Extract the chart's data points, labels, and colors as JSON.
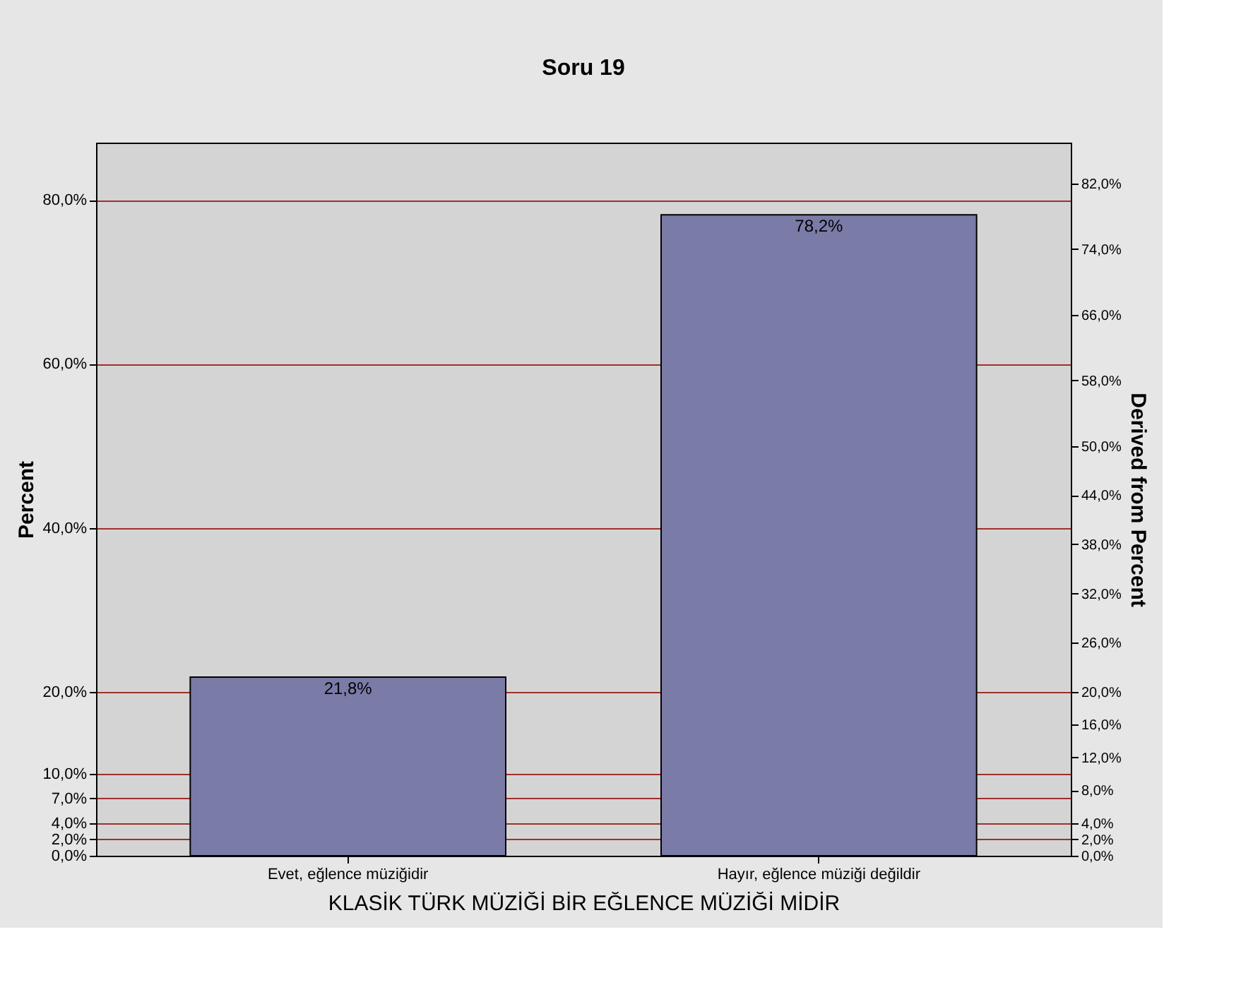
{
  "chart_data": {
    "type": "bar",
    "title": "Soru 19",
    "categories": [
      "Evet, eğlence müziğidir",
      "Hayır, eğlence müziği değildir"
    ],
    "values": [
      21.8,
      78.2
    ],
    "color": "#7b7ba8",
    "value_labels": [
      "21,8%",
      "78,2%"
    ],
    "xlabel": "KLASİK TÜRK MÜZİĞİ BİR EĞLENCE MÜZİĞİ MİDİR",
    "ylabel": "Percent",
    "y2label": "Derived from Percent",
    "ylim": [
      0,
      87
    ],
    "yticks": [
      {
        "value": 0,
        "label": "0,0%"
      },
      {
        "value": 2,
        "label": "2,0%"
      },
      {
        "value": 4,
        "label": "4,0%"
      },
      {
        "value": 7,
        "label": "7,0%"
      },
      {
        "value": 10,
        "label": "10,0%"
      },
      {
        "value": 20,
        "label": "20,0%"
      },
      {
        "value": 40,
        "label": "40,0%"
      },
      {
        "value": 60,
        "label": "60,0%"
      },
      {
        "value": 80,
        "label": "80,0%"
      }
    ],
    "y2lim": [
      0,
      87
    ],
    "y2ticks": [
      {
        "value": 0,
        "label": "0,0%"
      },
      {
        "value": 2,
        "label": "2,0%"
      },
      {
        "value": 4,
        "label": "4,0%"
      },
      {
        "value": 8,
        "label": "8,0%"
      },
      {
        "value": 12,
        "label": "12,0%"
      },
      {
        "value": 16,
        "label": "16,0%"
      },
      {
        "value": 20,
        "label": "20,0%"
      },
      {
        "value": 26,
        "label": "26,0%"
      },
      {
        "value": 32,
        "label": "32,0%"
      },
      {
        "value": 38,
        "label": "38,0%"
      },
      {
        "value": 44,
        "label": "44,0%"
      },
      {
        "value": 50,
        "label": "50,0%"
      },
      {
        "value": 58,
        "label": "58,0%"
      },
      {
        "value": 66,
        "label": "66,0%"
      },
      {
        "value": 74,
        "label": "74,0%"
      },
      {
        "value": 82,
        "label": "82,0%"
      }
    ],
    "grid": "y"
  }
}
